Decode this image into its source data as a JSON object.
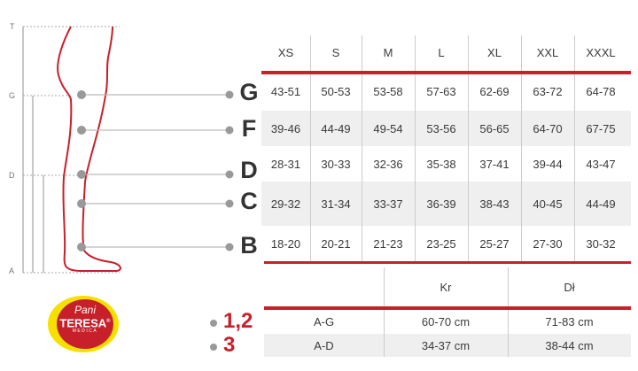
{
  "diagram": {
    "axis_labels": [
      "T",
      "G",
      "D",
      "A"
    ],
    "points": [
      "G",
      "F",
      "D",
      "C",
      "B"
    ]
  },
  "size_table": {
    "headers": [
      "XS",
      "S",
      "M",
      "L",
      "XL",
      "XXL",
      "XXXL"
    ],
    "rows": [
      {
        "label": "G",
        "values": [
          "43-51",
          "50-53",
          "53-58",
          "57-63",
          "62-69",
          "63-72",
          "64-78"
        ]
      },
      {
        "label": "F",
        "values": [
          "39-46",
          "44-49",
          "49-54",
          "53-56",
          "56-65",
          "64-70",
          "67-75"
        ]
      },
      {
        "label": "D",
        "values": [
          "28-31",
          "30-33",
          "32-36",
          "35-38",
          "37-41",
          "39-44",
          "43-47"
        ]
      },
      {
        "label": "C",
        "values": [
          "29-32",
          "31-34",
          "33-37",
          "36-39",
          "38-43",
          "40-45",
          "44-49"
        ]
      },
      {
        "label": "B",
        "values": [
          "18-20",
          "20-21",
          "21-23",
          "23-25",
          "25-27",
          "27-30",
          "30-32"
        ]
      }
    ]
  },
  "length_table": {
    "headers": [
      "",
      "Kr",
      "Dł"
    ],
    "rows": [
      {
        "marker": "1,2",
        "label": "A-G",
        "values": [
          "60-70 cm",
          "71-83 cm"
        ]
      },
      {
        "marker": "3",
        "label": "A-D",
        "values": [
          "34-37 cm",
          "38-44 cm"
        ]
      }
    ]
  },
  "logo": {
    "line1": "Pani",
    "line2": "TERESA",
    "line3": "MEDICA",
    "reg": "®"
  },
  "colors": {
    "accent": "#c8202a",
    "text": "#333333",
    "shade": "#efefef",
    "logo_yellow": "#f5e000"
  }
}
